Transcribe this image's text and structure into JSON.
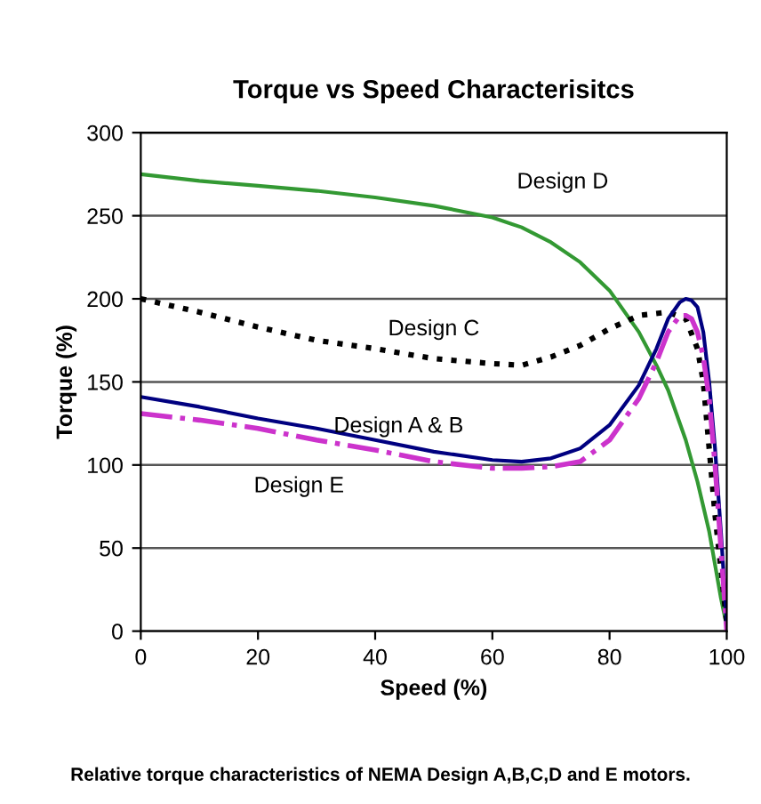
{
  "chart_data": {
    "type": "line",
    "title": "Torque vs Speed Characterisitcs",
    "xlabel": "Speed (%)",
    "ylabel": "Torque (%)",
    "xlim": [
      0,
      100
    ],
    "xticks": [
      0,
      20,
      40,
      60,
      80,
      100
    ],
    "ylim": [
      0,
      300
    ],
    "yticks": [
      0,
      50,
      100,
      150,
      200,
      250,
      300
    ],
    "grid": "y",
    "legend": false,
    "annotations": [
      "Relative torque characteristics of NEMA Design A,B,C,D and E motors."
    ],
    "series": [
      {
        "name": "Design D",
        "color": "#339933",
        "line_style": "solid",
        "x": [
          0,
          10,
          20,
          30,
          40,
          50,
          60,
          65,
          70,
          75,
          80,
          85,
          88,
          90,
          93,
          95,
          97,
          99,
          100
        ],
        "values": [
          275,
          271,
          268,
          265,
          261,
          256,
          249,
          243,
          234,
          222,
          205,
          180,
          160,
          145,
          115,
          90,
          60,
          20,
          3
        ]
      },
      {
        "name": "Design C",
        "color": "#000000",
        "line_style": "dotted",
        "x": [
          0,
          10,
          20,
          30,
          40,
          50,
          60,
          65,
          70,
          75,
          80,
          85,
          90,
          93,
          95,
          96,
          97,
          98,
          100
        ],
        "values": [
          200,
          192,
          183,
          175,
          170,
          164,
          161,
          160,
          165,
          172,
          182,
          190,
          192,
          188,
          170,
          150,
          110,
          70,
          5
        ]
      },
      {
        "name": "Design A & B",
        "color": "#000080",
        "line_style": "solid",
        "x": [
          0,
          10,
          20,
          30,
          40,
          50,
          60,
          65,
          70,
          75,
          80,
          85,
          88,
          90,
          92,
          93,
          94,
          95,
          96,
          97,
          98,
          99,
          100
        ],
        "values": [
          141,
          135,
          128,
          122,
          115,
          108,
          103,
          102,
          104,
          110,
          124,
          148,
          170,
          188,
          198,
          200,
          199,
          195,
          180,
          150,
          110,
          60,
          5
        ]
      },
      {
        "name": "Design E",
        "color": "#cc33cc",
        "line_style": "dashdot",
        "x": [
          0,
          10,
          20,
          30,
          40,
          50,
          60,
          65,
          70,
          75,
          80,
          85,
          88,
          90,
          92,
          93,
          94,
          95,
          96,
          97,
          98,
          99,
          100
        ],
        "values": [
          131,
          127,
          122,
          115,
          109,
          102,
          98,
          98,
          99,
          102,
          115,
          140,
          162,
          180,
          190,
          190,
          188,
          180,
          165,
          140,
          100,
          50,
          0
        ]
      }
    ]
  }
}
